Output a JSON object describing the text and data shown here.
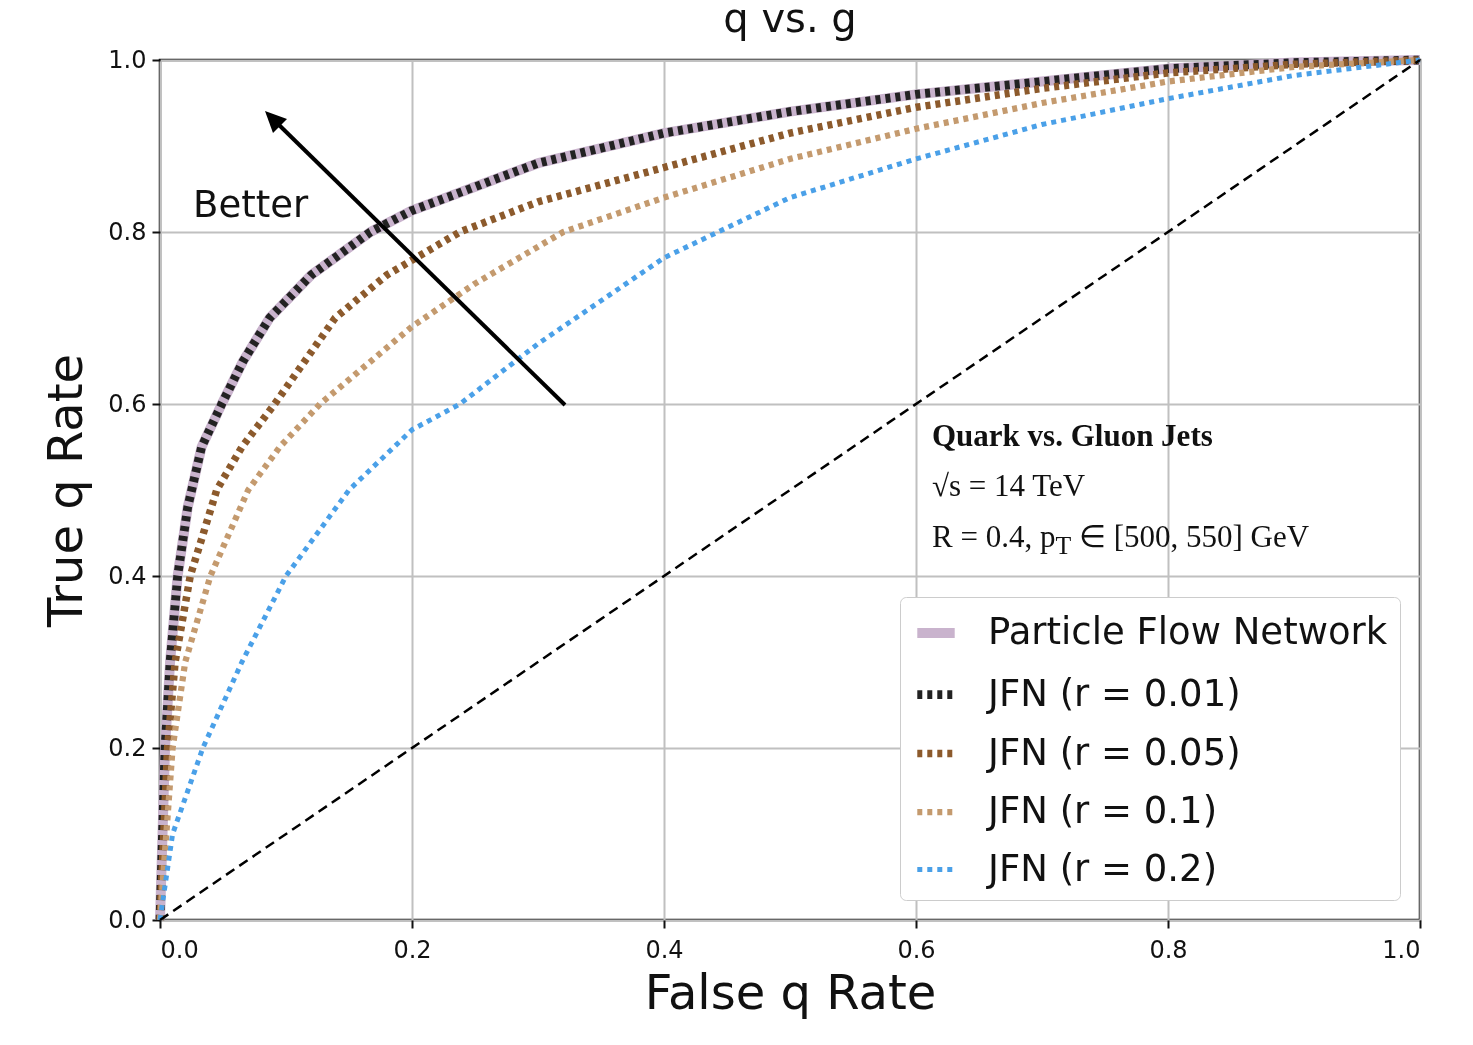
{
  "chart_data": {
    "type": "line",
    "title": "q vs. g",
    "xlabel": "False q Rate",
    "ylabel": "True q Rate",
    "xlim": [
      0,
      1
    ],
    "ylim": [
      0,
      1
    ],
    "xticks": [
      {
        "value": 0,
        "label": "0.0"
      },
      {
        "value": 0.2,
        "label": "0.2"
      },
      {
        "value": 0.4,
        "label": "0.4"
      },
      {
        "value": 0.6,
        "label": "0.6"
      },
      {
        "value": 0.8,
        "label": "0.8"
      },
      {
        "value": 1,
        "label": "1.0"
      }
    ],
    "yticks": [
      {
        "value": 0,
        "label": "0.0"
      },
      {
        "value": 0.2,
        "label": "0.2"
      },
      {
        "value": 0.4,
        "label": "0.4"
      },
      {
        "value": 0.6,
        "label": "0.6"
      },
      {
        "value": 0.8,
        "label": "0.8"
      },
      {
        "value": 1,
        "label": "1.0"
      }
    ],
    "grid": true,
    "legend": "bottom right",
    "marker": "none",
    "series": [
      {
        "name": "Particle Flow Network",
        "color": "#c9b3cd",
        "line_style": "solid",
        "x": [
          0,
          0.004,
          0.008,
          0.014,
          0.022,
          0.033,
          0.049,
          0.066,
          0.087,
          0.12,
          0.167,
          0.2,
          0.3,
          0.4,
          0.5,
          0.6,
          0.7,
          0.8,
          0.9,
          1
        ],
        "values": [
          0,
          0.2,
          0.3,
          0.4,
          0.48,
          0.55,
          0.6,
          0.65,
          0.7,
          0.75,
          0.8,
          0.825,
          0.88,
          0.915,
          0.94,
          0.96,
          0.975,
          0.99,
          0.997,
          1
        ]
      },
      {
        "name": "JFN (r = 0.01)",
        "color": "#222222",
        "line_style": "dotted",
        "x": [
          0,
          0.004,
          0.008,
          0.014,
          0.022,
          0.033,
          0.049,
          0.066,
          0.087,
          0.12,
          0.167,
          0.2,
          0.3,
          0.4,
          0.5,
          0.6,
          0.7,
          0.8,
          0.9,
          1
        ],
        "values": [
          0,
          0.2,
          0.3,
          0.4,
          0.48,
          0.55,
          0.6,
          0.65,
          0.7,
          0.75,
          0.8,
          0.825,
          0.88,
          0.915,
          0.94,
          0.96,
          0.975,
          0.99,
          0.997,
          1
        ]
      },
      {
        "name": "JFN (r = 0.05)",
        "color": "#8c5a2c",
        "line_style": "dotted",
        "x": [
          0,
          0.006,
          0.012,
          0.024,
          0.045,
          0.065,
          0.091,
          0.139,
          0.18,
          0.238,
          0.3,
          0.4,
          0.5,
          0.6,
          0.7,
          0.8,
          0.9,
          1
        ],
        "values": [
          0,
          0.2,
          0.3,
          0.4,
          0.5,
          0.55,
          0.6,
          0.7,
          0.75,
          0.8,
          0.835,
          0.875,
          0.915,
          0.945,
          0.967,
          0.985,
          0.995,
          1
        ]
      },
      {
        "name": "JFN (r = 0.1)",
        "color": "#c49a6e",
        "line_style": "dotted",
        "x": [
          0,
          0.01,
          0.02,
          0.04,
          0.07,
          0.095,
          0.127,
          0.2,
          0.25,
          0.32,
          0.4,
          0.5,
          0.6,
          0.7,
          0.8,
          0.9,
          1
        ],
        "values": [
          0,
          0.2,
          0.3,
          0.4,
          0.5,
          0.55,
          0.6,
          0.69,
          0.74,
          0.8,
          0.84,
          0.885,
          0.92,
          0.95,
          0.975,
          0.992,
          1
        ]
      },
      {
        "name": "JFN (r = 0.2)",
        "color": "#4aa0e8",
        "line_style": "dotted",
        "x": [
          0,
          0.01,
          0.034,
          0.065,
          0.1,
          0.15,
          0.2,
          0.238,
          0.3,
          0.4,
          0.5,
          0.6,
          0.7,
          0.8,
          0.9,
          1
        ],
        "values": [
          0,
          0.1,
          0.2,
          0.3,
          0.4,
          0.5,
          0.57,
          0.6,
          0.67,
          0.77,
          0.84,
          0.885,
          0.925,
          0.955,
          0.982,
          1
        ]
      },
      {
        "color": "#000000",
        "line_style": "dashed",
        "x": [
          0,
          1
        ],
        "values": [
          0,
          1
        ]
      }
    ],
    "annotations": [
      "Better",
      "Quark vs. Gluon Jets",
      "√s = 14 TeV",
      "R = 0.4, p$_{T}$ ∈ [500, 550] GeV"
    ]
  }
}
